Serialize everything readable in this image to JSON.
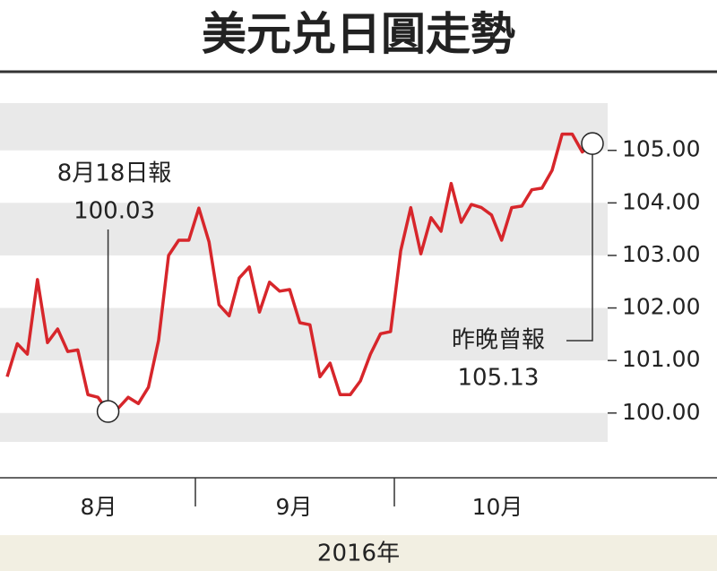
{
  "chart_data": {
    "type": "line",
    "title": "美元兑日圓走勢",
    "series": [
      {
        "color": "#d7262b",
        "values": [
          100.69,
          101.32,
          101.12,
          102.54,
          101.34,
          101.6,
          101.17,
          101.2,
          100.35,
          100.3,
          100.03,
          100.09,
          100.3,
          100.18,
          100.49,
          101.38,
          103.0,
          103.29,
          103.29,
          103.9,
          103.26,
          102.06,
          101.85,
          102.57,
          102.78,
          101.92,
          102.49,
          102.32,
          102.35,
          101.72,
          101.68,
          100.69,
          100.95,
          100.35,
          100.35,
          100.61,
          101.12,
          101.51,
          101.55,
          103.09,
          103.91,
          103.03,
          103.72,
          103.46,
          104.37,
          103.63,
          103.97,
          103.91,
          103.77,
          103.29,
          103.91,
          103.94,
          104.25,
          104.28,
          104.62,
          105.31,
          105.31,
          104.97,
          105.13
        ],
        "value_labels": [
          null,
          null,
          null,
          null,
          null,
          null,
          null,
          null,
          null,
          null,
          "100.03",
          null,
          null,
          null,
          null,
          null,
          null,
          null,
          null,
          null,
          null,
          null,
          null,
          null,
          null,
          null,
          null,
          null,
          null,
          null,
          null,
          null,
          null,
          null,
          null,
          null,
          null,
          null,
          null,
          null,
          null,
          null,
          null,
          null,
          null,
          null,
          null,
          null,
          null,
          null,
          null,
          null,
          null,
          null,
          null,
          null,
          null,
          null,
          "105.13"
        ],
        "notes": [
          null,
          null,
          null,
          null,
          null,
          null,
          null,
          null,
          null,
          null,
          "8月18日報",
          null,
          null,
          null,
          null,
          null,
          null,
          null,
          null,
          null,
          null,
          null,
          null,
          null,
          null,
          null,
          null,
          null,
          null,
          null,
          null,
          null,
          null,
          null,
          null,
          null,
          null,
          null,
          null,
          null,
          null,
          null,
          null,
          null,
          null,
          null,
          null,
          null,
          null,
          null,
          null,
          null,
          null,
          null,
          null,
          null,
          null,
          null,
          "昨晚曾報"
        ]
      }
    ],
    "months": [
      "8月",
      "9月",
      "10月"
    ],
    "xlabel": "2016年",
    "ylim": [
      99.45,
      105.9
    ],
    "yticks": [
      {
        "value": 100,
        "label": "100.00"
      },
      {
        "value": 101,
        "label": "101.00"
      },
      {
        "value": 102,
        "label": "102.00"
      },
      {
        "value": 103,
        "label": "103.00"
      },
      {
        "value": 104,
        "label": "104.00"
      },
      {
        "value": 105,
        "label": "105.00"
      }
    ],
    "grid": true
  }
}
